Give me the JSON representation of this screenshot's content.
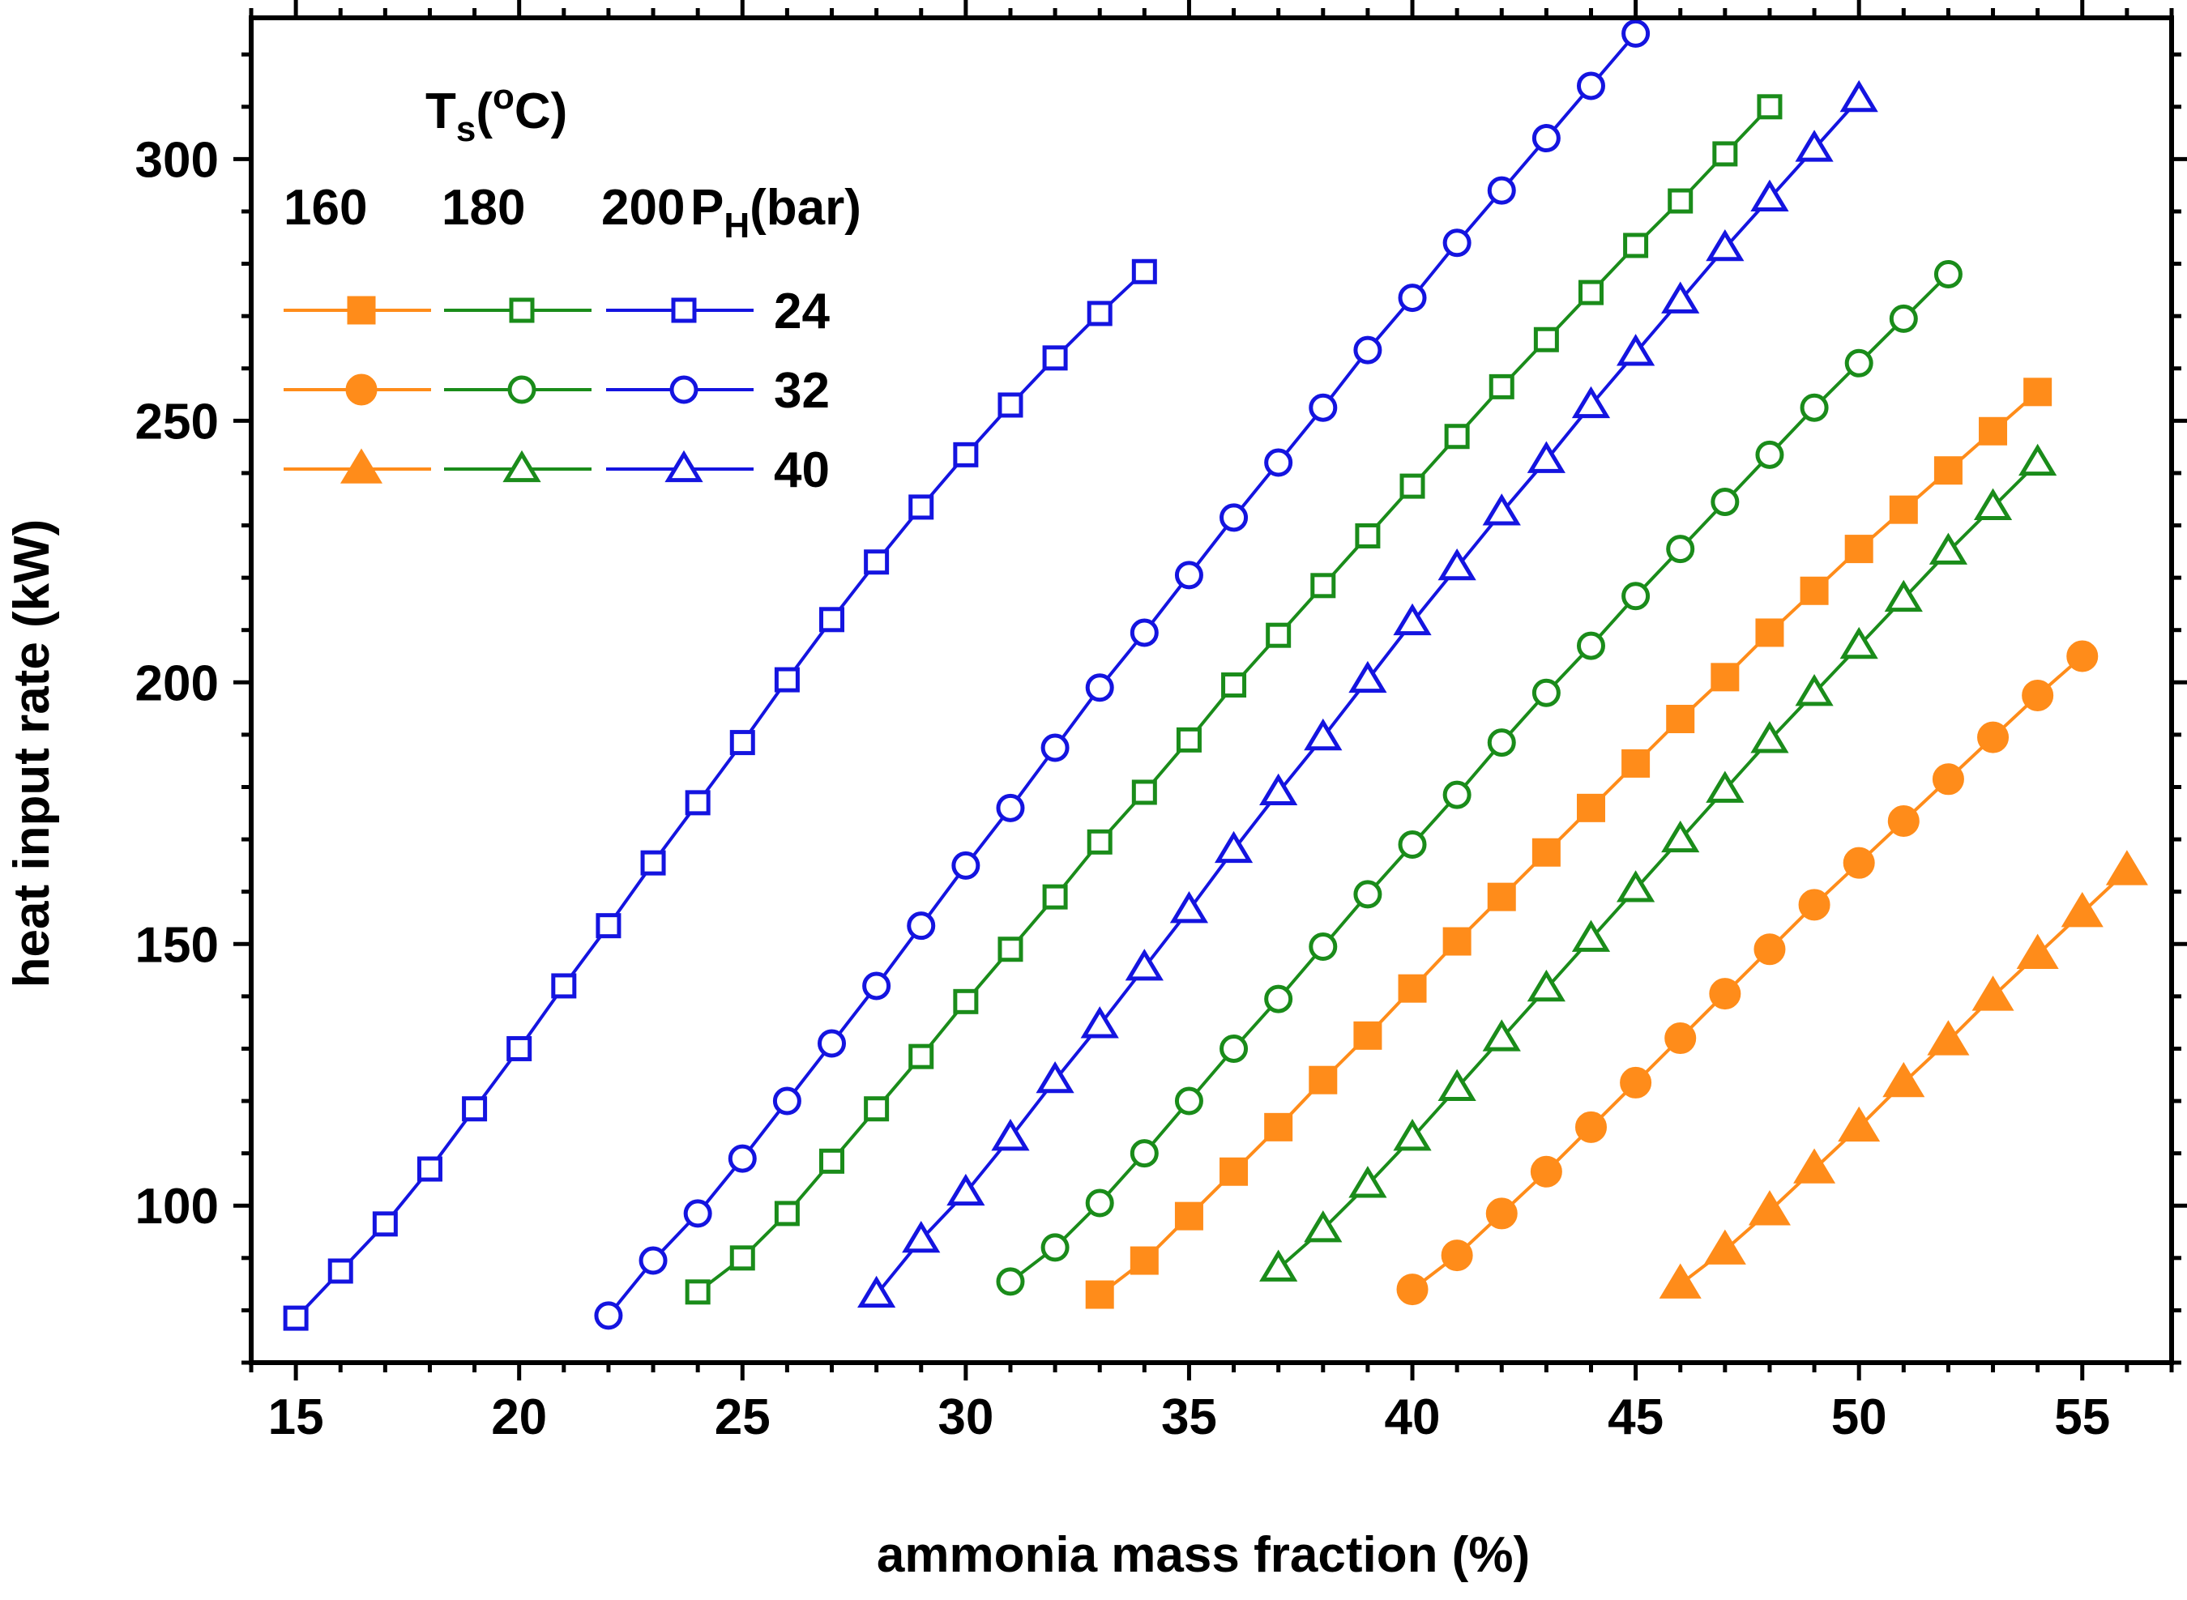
{
  "chart_data": {
    "type": "line",
    "title": "",
    "xlabel": "ammonia mass fraction (%)",
    "ylabel": "heat input rate (kW)",
    "xlim": [
      14,
      57
    ],
    "ylim": [
      70,
      327
    ],
    "x_ticks": [
      15,
      20,
      25,
      30,
      35,
      40,
      45,
      50,
      55
    ],
    "y_ticks": [
      100,
      150,
      200,
      250,
      300
    ],
    "grid": false,
    "legend": {
      "placement": "top-left",
      "ts_label": "T",
      "ts_sub": "s",
      "ts_paren_open": "(",
      "ts_sup": "o",
      "ts_unit": "C)",
      "temp_labels": [
        "160",
        "180",
        "200"
      ],
      "ph_label": "P",
      "ph_sub": "H",
      "ph_unit": "(bar)",
      "pressure_labels": [
        "24",
        "32",
        "40"
      ]
    },
    "colors": {
      "160": "#ff8c1a",
      "180": "#1a8c1a",
      "200": "#1414e0"
    },
    "series": [
      {
        "temp": "160",
        "pressure": "24",
        "marker": "square",
        "filled": true,
        "x": [
          33,
          34,
          35,
          36,
          37,
          38,
          39,
          40,
          41,
          42,
          43,
          44,
          45,
          46,
          47,
          48,
          49,
          50,
          51,
          52,
          53,
          54
        ],
        "y": [
          83,
          89.5,
          98,
          106.5,
          115,
          124,
          132.5,
          141.5,
          150.5,
          159,
          167.5,
          176,
          184.5,
          193,
          201,
          209.5,
          217.5,
          225.5,
          233,
          240.5,
          248,
          255.5
        ]
      },
      {
        "temp": "160",
        "pressure": "32",
        "marker": "circle",
        "filled": true,
        "x": [
          40,
          41,
          42,
          43,
          44,
          45,
          46,
          47,
          48,
          49,
          50,
          51,
          52,
          53,
          54,
          55
        ],
        "y": [
          84,
          90.5,
          98.5,
          106.5,
          115,
          123.5,
          132,
          140.5,
          149,
          157.5,
          165.5,
          173.5,
          181.5,
          189.5,
          197.5,
          205
        ]
      },
      {
        "temp": "160",
        "pressure": "40",
        "marker": "triangle",
        "filled": true,
        "x": [
          46,
          47,
          48,
          49,
          50,
          51,
          52,
          53,
          54,
          55,
          56
        ],
        "y": [
          85,
          91.5,
          99,
          107,
          115,
          123.5,
          131.5,
          140,
          148,
          156,
          164
        ]
      },
      {
        "temp": "180",
        "pressure": "24",
        "marker": "square",
        "filled": false,
        "x": [
          24,
          25,
          26,
          27,
          28,
          29,
          30,
          31,
          32,
          33,
          34,
          35,
          36,
          37,
          38,
          39,
          40,
          41,
          42,
          43,
          44,
          45,
          46,
          47,
          48
        ],
        "y": [
          83.5,
          90,
          98.5,
          108.5,
          118.5,
          128.5,
          139,
          149,
          159,
          169.5,
          179,
          189,
          199.5,
          209,
          218.5,
          228,
          237.5,
          247,
          256.5,
          265.5,
          274.5,
          283.5,
          292,
          301,
          310
        ]
      },
      {
        "temp": "180",
        "pressure": "32",
        "marker": "circle",
        "filled": false,
        "x": [
          31,
          32,
          33,
          34,
          35,
          36,
          37,
          38,
          39,
          40,
          41,
          42,
          43,
          44,
          45,
          46,
          47,
          48,
          49,
          50,
          51,
          52
        ],
        "y": [
          85.5,
          92,
          100.5,
          110,
          120,
          130,
          139.5,
          149.5,
          159.5,
          169,
          178.5,
          188.5,
          198,
          207,
          216.5,
          225.5,
          234.5,
          243.5,
          252.5,
          261,
          269.5,
          278
        ]
      },
      {
        "temp": "180",
        "pressure": "40",
        "marker": "triangle",
        "filled": false,
        "x": [
          37,
          38,
          39,
          40,
          41,
          42,
          43,
          44,
          45,
          46,
          47,
          48,
          49,
          50,
          51,
          52,
          53,
          54
        ],
        "y": [
          88,
          95.5,
          104,
          113,
          122.5,
          132,
          141.5,
          151,
          160.5,
          170,
          179.5,
          189,
          198,
          207,
          216,
          225,
          233.5,
          242
        ]
      },
      {
        "temp": "200",
        "pressure": "24",
        "marker": "square",
        "filled": false,
        "x": [
          15,
          16,
          17,
          18,
          19,
          20,
          21,
          22,
          23,
          24,
          25,
          26,
          27,
          28,
          29,
          30,
          31,
          32,
          33,
          34
        ],
        "y": [
          78.5,
          87.5,
          96.5,
          107,
          118.5,
          130,
          142,
          153.5,
          165.5,
          177,
          188.5,
          200.5,
          212,
          223,
          233.5,
          243.5,
          253,
          262,
          270.5,
          278.5
        ]
      },
      {
        "temp": "200",
        "pressure": "32",
        "marker": "circle",
        "filled": false,
        "x": [
          22,
          23,
          24,
          25,
          26,
          27,
          28,
          29,
          30,
          31,
          32,
          33,
          34,
          35,
          36,
          37,
          38,
          39,
          40,
          41,
          42,
          43,
          44,
          45
        ],
        "y": [
          79,
          89.5,
          98.5,
          109,
          120,
          131,
          142,
          153.5,
          165,
          176,
          187.5,
          199,
          209.5,
          220.5,
          231.5,
          242,
          252.5,
          263.5,
          273.5,
          284,
          294,
          304,
          314,
          324
        ]
      },
      {
        "temp": "200",
        "pressure": "40",
        "marker": "triangle",
        "filled": false,
        "x": [
          28,
          29,
          30,
          31,
          32,
          33,
          34,
          35,
          36,
          37,
          38,
          39,
          40,
          41,
          42,
          43,
          44,
          45,
          46,
          47,
          48,
          49,
          50
        ],
        "y": [
          83,
          93.5,
          102.5,
          113,
          124,
          134.5,
          145.5,
          156.5,
          168,
          179,
          189.5,
          200.5,
          211.5,
          222,
          232.5,
          242.5,
          253,
          263,
          273,
          283,
          292.5,
          302,
          311.5
        ]
      }
    ]
  }
}
